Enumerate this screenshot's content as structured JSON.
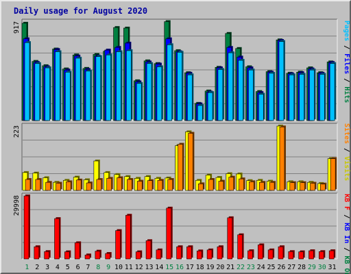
{
  "title": "Daily usage for August 2020",
  "colors": {
    "hits": "#008040",
    "files": "#0000ff",
    "pages": "#00c0ff",
    "visits": "#ffff00",
    "sites": "#ff8000",
    "kb_in": "#0000ff",
    "kb_out": "#008040",
    "kb_f": "#ff0000",
    "separator": "#000000"
  },
  "chart_data": [
    {
      "type": "bar",
      "panel": "top",
      "max_label": "917",
      "ylim": [
        0,
        917
      ],
      "categories": [
        "1",
        "2",
        "3",
        "4",
        "5",
        "6",
        "7",
        "8",
        "9",
        "10",
        "11",
        "12",
        "13",
        "14",
        "15",
        "16",
        "17",
        "18",
        "19",
        "20",
        "21",
        "22",
        "23",
        "24",
        "25",
        "26",
        "27",
        "28",
        "29",
        "30",
        "31"
      ],
      "weekend_days": [
        "1",
        "8",
        "9",
        "15",
        "16",
        "22",
        "23",
        "29",
        "30"
      ],
      "legend": [
        "Pages",
        "Files",
        "Hits"
      ],
      "series": [
        {
          "name": "Hits",
          "key": "hits",
          "values": [
            905,
            550,
            510,
            665,
            480,
            610,
            485,
            615,
            645,
            865,
            860,
            370,
            555,
            530,
            920,
            650,
            445,
            160,
            275,
            495,
            810,
            670,
            500,
            270,
            455,
            750,
            440,
            450,
            490,
            445,
            545
          ]
        },
        {
          "name": "Files",
          "key": "files",
          "values": [
            760,
            540,
            500,
            660,
            470,
            600,
            475,
            600,
            655,
            680,
            720,
            360,
            545,
            525,
            760,
            640,
            440,
            155,
            265,
            490,
            680,
            590,
            490,
            260,
            450,
            745,
            435,
            445,
            480,
            440,
            540
          ]
        },
        {
          "name": "Pages",
          "key": "pages",
          "values": [
            725,
            530,
            490,
            640,
            450,
            580,
            460,
            595,
            610,
            640,
            650,
            345,
            530,
            500,
            705,
            635,
            425,
            140,
            260,
            475,
            630,
            560,
            470,
            245,
            440,
            735,
            425,
            430,
            470,
            430,
            530
          ]
        }
      ]
    },
    {
      "type": "bar",
      "panel": "middle",
      "max_label": "223",
      "ylim": [
        0,
        223
      ],
      "categories": [
        "1",
        "2",
        "3",
        "4",
        "5",
        "6",
        "7",
        "8",
        "9",
        "10",
        "11",
        "12",
        "13",
        "14",
        "15",
        "16",
        "17",
        "18",
        "19",
        "20",
        "21",
        "22",
        "23",
        "24",
        "25",
        "26",
        "27",
        "28",
        "29",
        "30",
        "31"
      ],
      "legend": [
        "Sites",
        "Visits"
      ],
      "series": [
        {
          "name": "Visits",
          "key": "visits",
          "values": [
            62,
            60,
            44,
            28,
            35,
            46,
            37,
            102,
            62,
            55,
            48,
            42,
            48,
            42,
            43,
            155,
            203,
            35,
            53,
            45,
            58,
            57,
            34,
            35,
            32,
            223,
            30,
            30,
            28,
            24,
            110
          ]
        },
        {
          "name": "Sites",
          "key": "sites",
          "values": [
            38,
            38,
            28,
            25,
            30,
            36,
            26,
            38,
            42,
            44,
            38,
            32,
            34,
            35,
            38,
            160,
            198,
            23,
            38,
            32,
            46,
            40,
            30,
            28,
            28,
            220,
            27,
            27,
            25,
            22,
            110
          ]
        }
      ]
    },
    {
      "type": "bar",
      "panel": "bottom",
      "max_label": "29998",
      "ylim": [
        0,
        29998
      ],
      "categories": [
        "1",
        "2",
        "3",
        "4",
        "5",
        "6",
        "7",
        "8",
        "9",
        "10",
        "11",
        "12",
        "13",
        "14",
        "15",
        "16",
        "17",
        "18",
        "19",
        "20",
        "21",
        "22",
        "23",
        "24",
        "25",
        "26",
        "27",
        "28",
        "29",
        "30",
        "31"
      ],
      "legend": [
        "KB F",
        "KB In",
        "KB Out"
      ],
      "series": [
        {
          "name": "KB F",
          "key": "kb_f",
          "values": [
            29998,
            5800,
            3500,
            19200,
            3400,
            7700,
            1900,
            3700,
            2600,
            13500,
            20800,
            3400,
            8700,
            4300,
            24200,
            5800,
            5800,
            3800,
            4300,
            5800,
            19600,
            11500,
            3900,
            6700,
            4300,
            5800,
            3500,
            3400,
            3900,
            3500,
            3900
          ]
        }
      ]
    }
  ]
}
